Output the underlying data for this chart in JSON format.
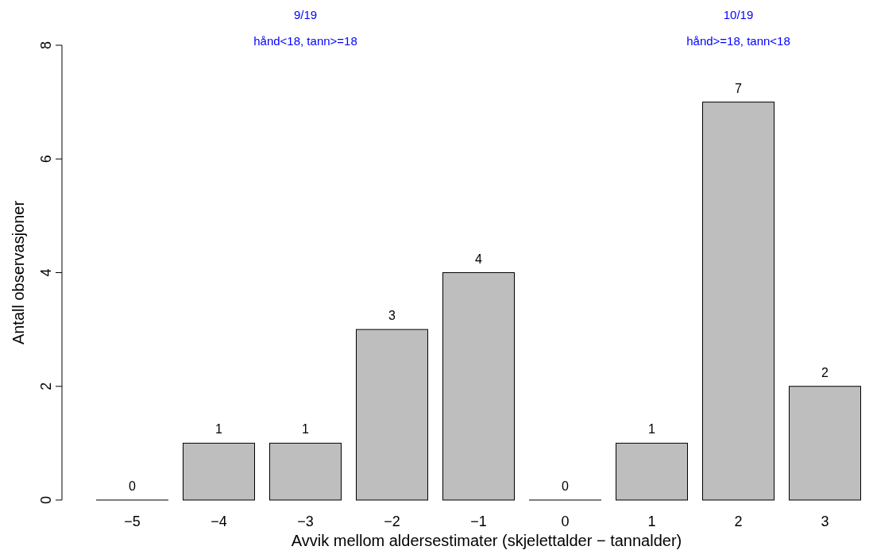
{
  "chart_data": {
    "type": "bar",
    "xlabel": "Avvik mellom aldersestimater (skjelettalder − tannalder)",
    "ylabel": "Antall observasjoner",
    "categories": [
      "−5",
      "−4",
      "−3",
      "−2",
      "−1",
      "0",
      "1",
      "2",
      "3"
    ],
    "values": [
      0,
      1,
      1,
      3,
      4,
      0,
      1,
      7,
      2
    ],
    "color": "#bebebe",
    "data_labels": true,
    "ylim": [
      0,
      8
    ],
    "yticks": [
      0,
      2,
      4,
      6,
      8
    ],
    "grid": false,
    "annotations": [
      "9/19",
      "hånd<18, tann>=18",
      "10/19",
      "hånd>=18, tann<18"
    ]
  }
}
